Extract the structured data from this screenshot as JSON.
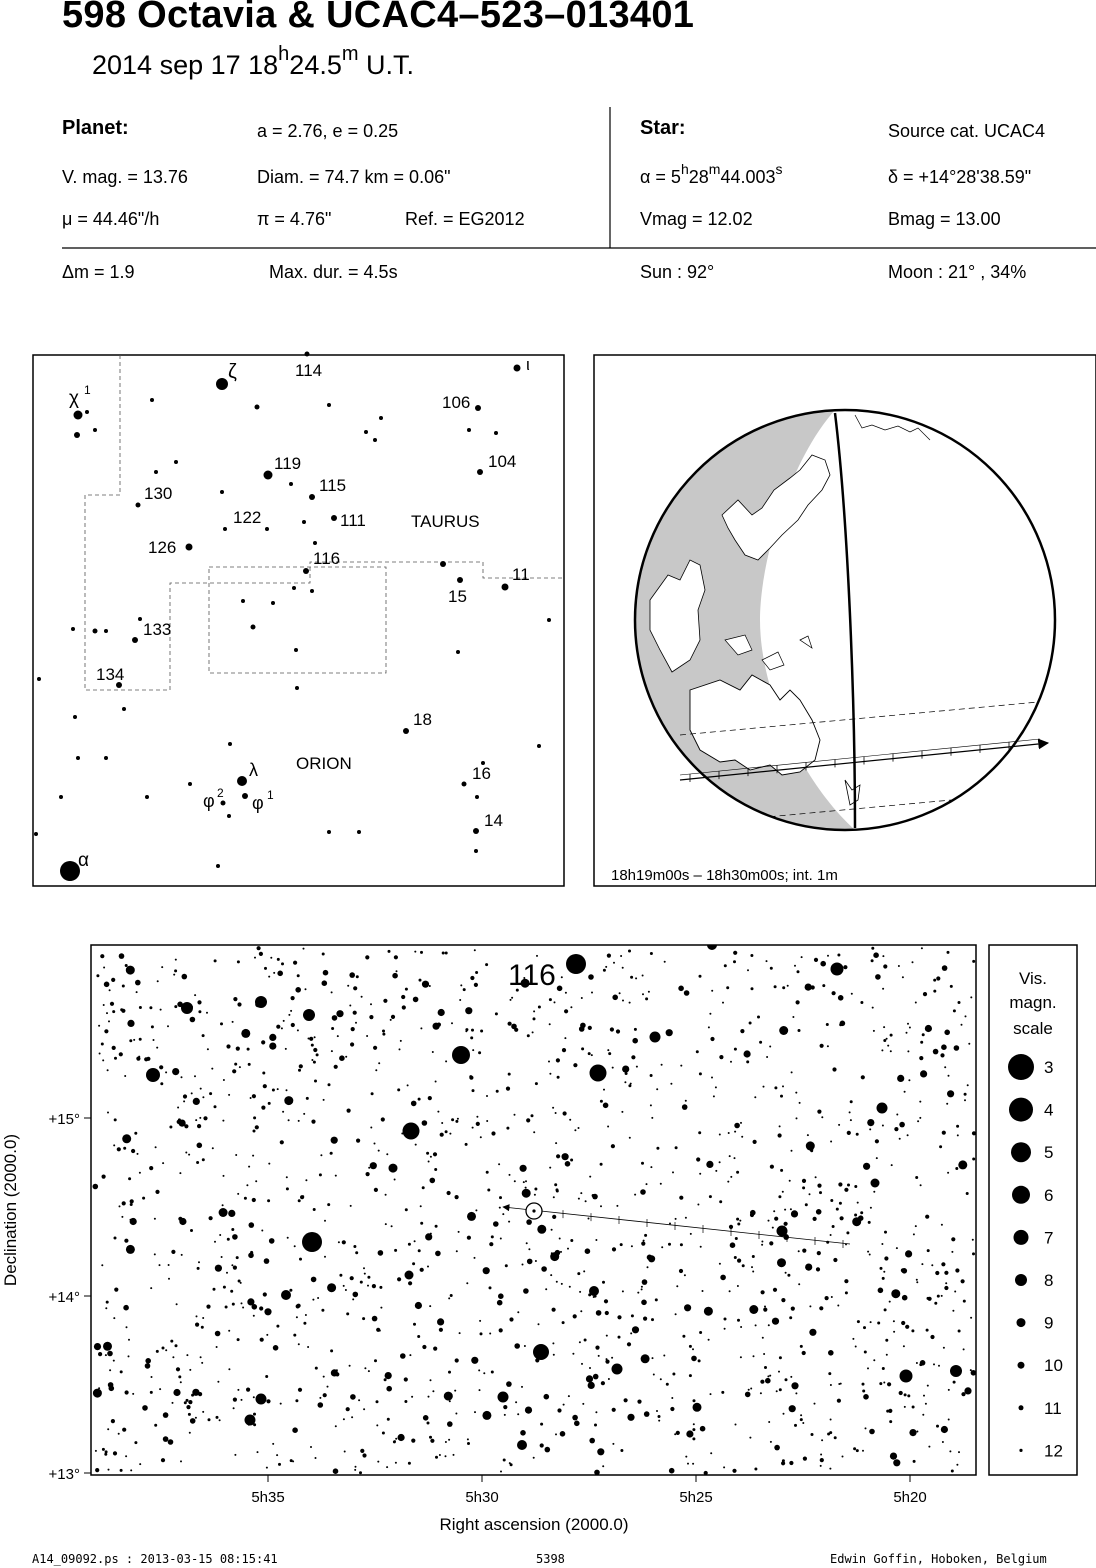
{
  "title": "598 Octavia  &  UCAC4–523–013401",
  "subtitle": {
    "date": "2014 sep 17  18",
    "h": "h",
    "min": "24.5",
    "m": "m",
    "tz": " U.T."
  },
  "planet": {
    "header": "Planet:",
    "orbit": "a = 2.76, e = 0.25",
    "vmag": "V. mag. = 13.76",
    "diam": "Diam. = 74.7 km = 0.06\"",
    "mu": "μ =  44.46\"/h",
    "pi": "π =  4.76\"",
    "ref": "Ref. = EG2012",
    "dm": "Δm = 1.9",
    "maxdur": "Max. dur. = 4.5s"
  },
  "star": {
    "header": "Star:",
    "source": "Source cat.  UCAC4",
    "alpha_pre": "α =  5",
    "alpha_h": "h",
    "alpha_mid": "28",
    "alpha_m": "m",
    "alpha_sec": "44.003",
    "alpha_s": "s",
    "delta": "δ = +14°28'38.59\"",
    "vmag": "Vmag = 12.02",
    "bmag": "Bmag = 13.00",
    "sun": "Sun :  92°",
    "moon": "Moon :  21° , 34%"
  },
  "finder_labels": [
    {
      "id": "zeta",
      "text": "ζ"
    },
    {
      "id": "114",
      "text": "114"
    },
    {
      "id": "iota",
      "text": "ι"
    },
    {
      "id": "chi",
      "text": "χ"
    },
    {
      "id": "chi_sup",
      "text": "1"
    },
    {
      "id": "106",
      "text": "106"
    },
    {
      "id": "104",
      "text": "104"
    },
    {
      "id": "119",
      "text": "119"
    },
    {
      "id": "115",
      "text": "115"
    },
    {
      "id": "130",
      "text": "130"
    },
    {
      "id": "122",
      "text": "122"
    },
    {
      "id": "111",
      "text": "111"
    },
    {
      "id": "taurus",
      "text": "TAURUS"
    },
    {
      "id": "126",
      "text": "126"
    },
    {
      "id": "116",
      "text": "116"
    },
    {
      "id": "11",
      "text": "11"
    },
    {
      "id": "15",
      "text": "15"
    },
    {
      "id": "133",
      "text": "133"
    },
    {
      "id": "134",
      "text": "134"
    },
    {
      "id": "18",
      "text": "18"
    },
    {
      "id": "lambda",
      "text": "λ"
    },
    {
      "id": "orion",
      "text": "ORION"
    },
    {
      "id": "16",
      "text": "16"
    },
    {
      "id": "phi2",
      "text": "φ"
    },
    {
      "id": "phi2_sup",
      "text": "2"
    },
    {
      "id": "phi1",
      "text": "φ"
    },
    {
      "id": "phi1_sup",
      "text": "1"
    },
    {
      "id": "14",
      "text": "14"
    },
    {
      "id": "alpha",
      "text": "α"
    }
  ],
  "globe": {
    "caption": "18h19m00s – 18h30m00s; int.  1m"
  },
  "chart": {
    "label_116": "116",
    "yticks": [
      "+15°",
      "+14°",
      "+13°"
    ],
    "xticks": [
      "5h35",
      "5h30",
      "5h25",
      "5h20"
    ],
    "xlabel": "Right ascension (2000.0)",
    "ylabel": "Declination (2000.0)"
  },
  "scale": {
    "title": [
      "Vis.",
      "magn.",
      "scale"
    ],
    "mags": [
      "3",
      "4",
      "5",
      "6",
      "7",
      "8",
      "9",
      "10",
      "11",
      "12"
    ]
  },
  "footer": {
    "left": "A14_09092.ps : 2013-03-15 08:15:41",
    "center": "5398",
    "right": "Edwin Goffin, Hoboken, Belgium"
  }
}
